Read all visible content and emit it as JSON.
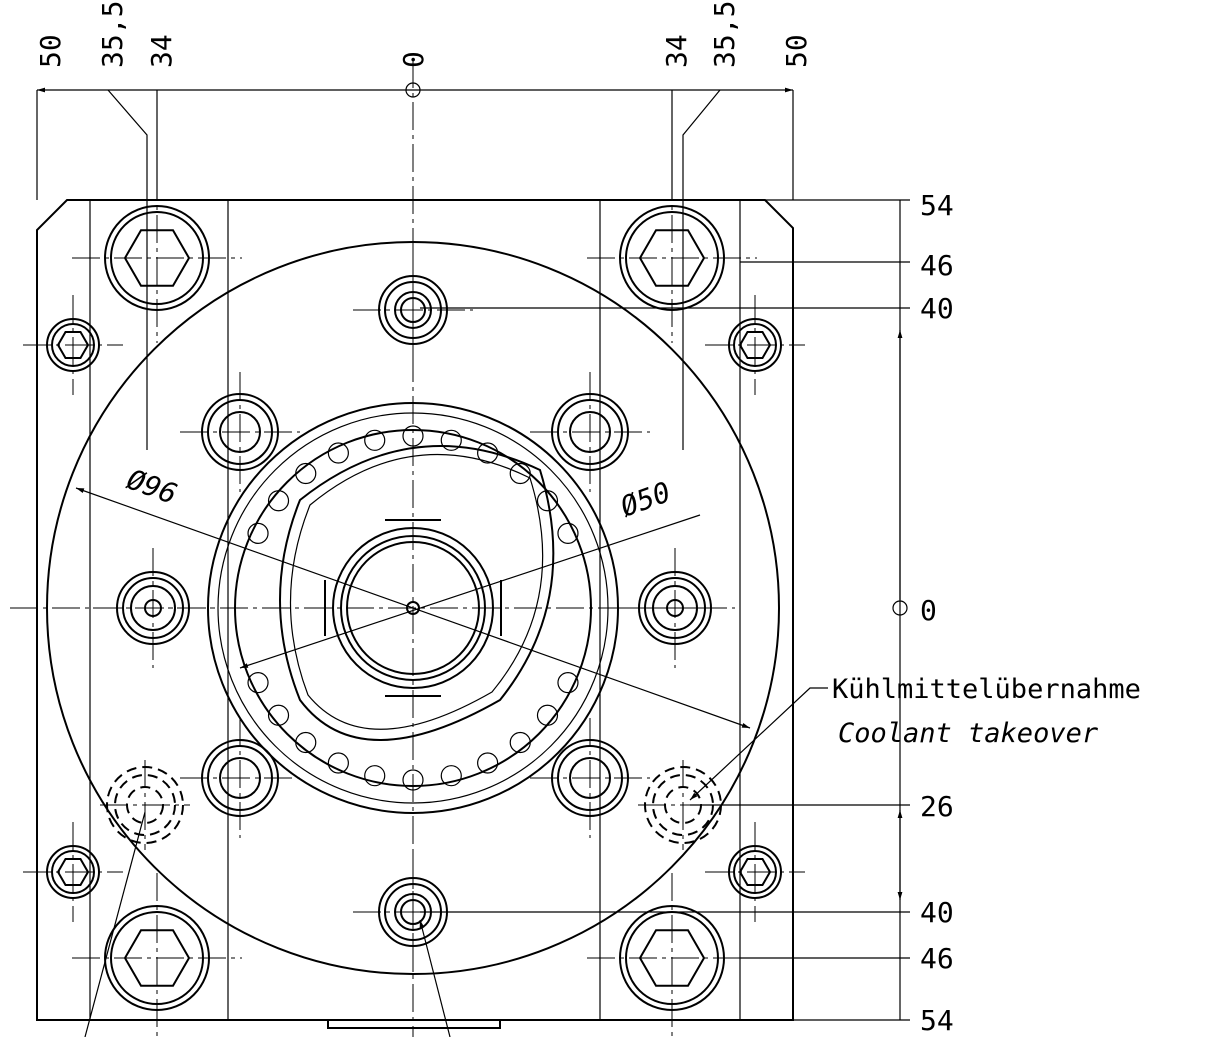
{
  "top_dimensions": [
    "50",
    "35,5",
    "34",
    "0",
    "34",
    "35,5",
    "50"
  ],
  "right_dimensions": [
    "54",
    "46",
    "40",
    "0",
    "26",
    "40",
    "46",
    "54"
  ],
  "diameters": [
    "Ø96",
    "Ø50"
  ],
  "callout": {
    "de": "Kühlmittelübernahme",
    "en": "Coolant takeover"
  }
}
